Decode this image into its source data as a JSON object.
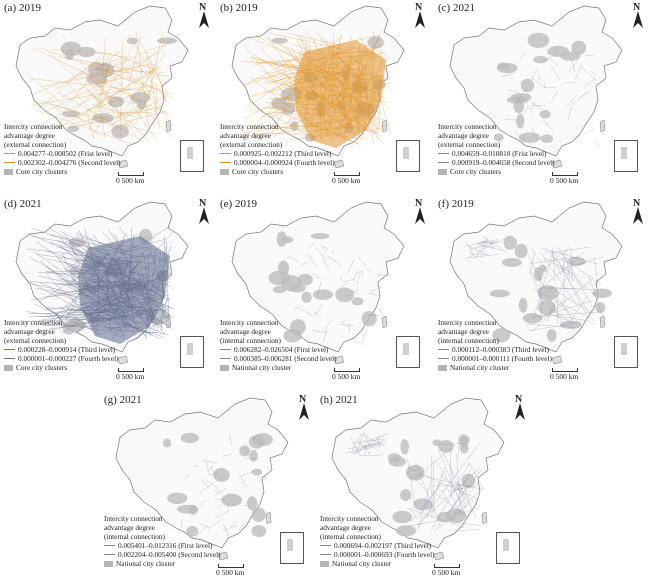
{
  "panels": [
    {
      "title": "(a) 2019",
      "legend_title": [
        "Intercity connection",
        "advantage degree",
        "(external connection)"
      ],
      "items": [
        {
          "label": "0.004277–0.008502 (Frist level)",
          "color": "#d98e2a"
        },
        {
          "label": "0.002302–0.004276 (Second level)",
          "color": "#d98e2a"
        }
      ],
      "cluster": "Core city clusters",
      "scale": "500 km",
      "line_color": "#d98e2a",
      "fill": "#d98e2a"
    },
    {
      "title": "(b) 2019",
      "legend_title": [
        "Intercity connection",
        "advantage degree",
        "(external connection)"
      ],
      "items": [
        {
          "label": "0.000925–0.002212 (Third level)",
          "color": "#d98e2a"
        },
        {
          "label": "0.000004–0.000924 (Fourth level)",
          "color": "#d98e2a"
        }
      ],
      "cluster": "Core city clusters",
      "scale": "500 km",
      "line_color": "#e0962e",
      "fill": "#e0962e"
    },
    {
      "title": "(c) 2021",
      "legend_title": [
        "Intercity connection",
        "advantage degree",
        "(external connection)"
      ],
      "items": [
        {
          "label": "0.004659–0.010810 (Frist level)",
          "color": "#7a86a8"
        },
        {
          "label": "0.000919–0.004658 (Second level)",
          "color": "#7a86a8"
        }
      ],
      "cluster": "Core city clusters",
      "scale": "500 km",
      "line_color": "#7a86a8",
      "fill": "#c9c9c9"
    },
    {
      "title": "(d) 2021",
      "legend_title": [
        "Intercity connection",
        "advantage degree",
        "(external connection)"
      ],
      "items": [
        {
          "label": "0.000228–0.000914 (Third level)",
          "color": "#6a7392"
        },
        {
          "label": "0.000001–0.000227 (Fourth level)",
          "color": "#6a7392"
        }
      ],
      "cluster": "Core city clusters",
      "scale": "500 km",
      "line_color": "#5f6a8c",
      "fill": "#5f6a8c"
    },
    {
      "title": "(e) 2019",
      "legend_title": [
        "Intercity connection",
        "advantage degree",
        "(internal connection)"
      ],
      "items": [
        {
          "label": "0.006282–0.026504 (First level)",
          "color": "#888888"
        },
        {
          "label": "0.000385–0.006281 (Second level)",
          "color": "#888888"
        }
      ],
      "cluster": "National city cluster",
      "scale": "500 km",
      "line_color": "#888888",
      "fill": "#c2c2c2"
    },
    {
      "title": "(f) 2019",
      "legend_title": [
        "Intercity connection",
        "advantage degree",
        "(internal connection)"
      ],
      "items": [
        {
          "label": "0.000112–0.000383 (Third level)",
          "color": "#888888"
        },
        {
          "label": "0.000001–0.000111 (Fourth level)",
          "color": "#888888"
        }
      ],
      "cluster": "National city cluster",
      "scale": "500 km",
      "line_color": "#7d86a3",
      "fill": "#b8b2a6"
    },
    {
      "title": "(g) 2021",
      "legend_title": [
        "Intercity connection",
        "advantage degree",
        "(internal connection)"
      ],
      "items": [
        {
          "label": "0.005401–0.012316 (First level)",
          "color": "#888888"
        },
        {
          "label": "0.002204–0.005400 (Second level)",
          "color": "#888888"
        }
      ],
      "cluster": "National city cluster",
      "scale": "500 km",
      "line_color": "#888888",
      "fill": "#c2c2c2"
    },
    {
      "title": "(h) 2021",
      "legend_title": [
        "Intercity connection",
        "advantage degree",
        "(internal connection)"
      ],
      "items": [
        {
          "label": "0.000694–0.002197 (Third level)",
          "color": "#888888"
        },
        {
          "label": "0.000001–0.000693 (Fourth level)",
          "color": "#888888"
        }
      ],
      "cluster": "National city cluster",
      "scale": "500 km",
      "line_color": "#7d86a3",
      "fill": "#b8b2a6"
    }
  ],
  "north_label": "N"
}
